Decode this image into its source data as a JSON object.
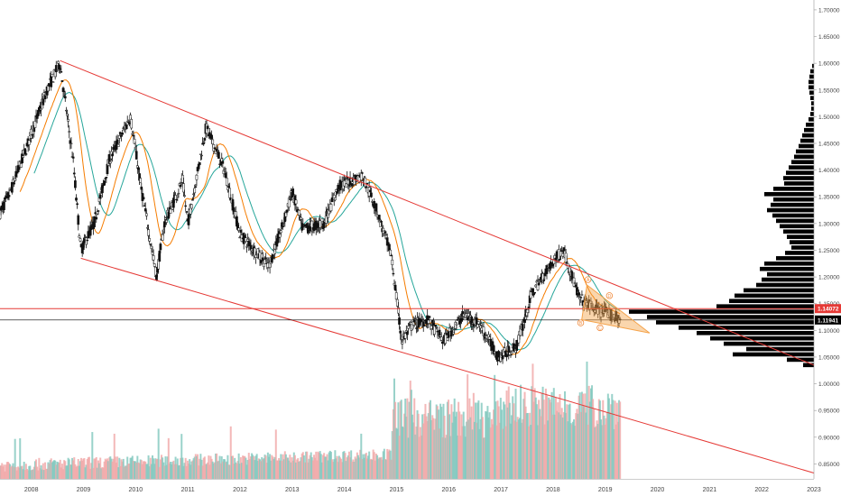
{
  "chart_data": {
    "type": "candlestick",
    "title": "",
    "xlabel": "",
    "ylabel": "",
    "x_ticks": [
      "2008",
      "2009",
      "2010",
      "2011",
      "2012",
      "2013",
      "2014",
      "2015",
      "2016",
      "2017",
      "2018",
      "2019",
      "2020",
      "2021",
      "2022",
      "2023"
    ],
    "y_ticks": [
      "1.70000",
      "1.65000",
      "1.60000",
      "1.55000",
      "1.50000",
      "1.45000",
      "1.40000",
      "1.35000",
      "1.30000",
      "1.25000",
      "1.20000",
      "1.15000",
      "1.10000",
      "1.05000",
      "1.00000",
      "0.95000",
      "0.90000",
      "0.85000"
    ],
    "xlim": [
      2007.4,
      2023.0
    ],
    "ylim": [
      0.822,
      1.71
    ],
    "price_path": [
      [
        2007.4,
        1.32
      ],
      [
        2007.6,
        1.36
      ],
      [
        2007.9,
        1.44
      ],
      [
        2008.3,
        1.55
      ],
      [
        2008.55,
        1.6
      ],
      [
        2008.8,
        1.42
      ],
      [
        2008.95,
        1.25
      ],
      [
        2009.2,
        1.3
      ],
      [
        2009.5,
        1.42
      ],
      [
        2009.9,
        1.5
      ],
      [
        2010.1,
        1.37
      ],
      [
        2010.4,
        1.2
      ],
      [
        2010.55,
        1.3
      ],
      [
        2010.9,
        1.38
      ],
      [
        2011.0,
        1.3
      ],
      [
        2011.35,
        1.48
      ],
      [
        2011.7,
        1.4
      ],
      [
        2012.0,
        1.28
      ],
      [
        2012.55,
        1.22
      ],
      [
        2012.8,
        1.29
      ],
      [
        2013.0,
        1.36
      ],
      [
        2013.2,
        1.29
      ],
      [
        2013.6,
        1.3
      ],
      [
        2013.9,
        1.37
      ],
      [
        2014.35,
        1.39
      ],
      [
        2014.6,
        1.33
      ],
      [
        2014.9,
        1.24
      ],
      [
        2015.1,
        1.08
      ],
      [
        2015.3,
        1.11
      ],
      [
        2015.6,
        1.12
      ],
      [
        2015.9,
        1.08
      ],
      [
        2016.3,
        1.13
      ],
      [
        2016.6,
        1.11
      ],
      [
        2016.95,
        1.05
      ],
      [
        2017.3,
        1.07
      ],
      [
        2017.6,
        1.17
      ],
      [
        2018.0,
        1.23
      ],
      [
        2018.2,
        1.25
      ],
      [
        2018.5,
        1.16
      ],
      [
        2018.8,
        1.14
      ],
      [
        2019.1,
        1.13
      ],
      [
        2019.3,
        1.12
      ]
    ],
    "series": [
      {
        "name": "",
        "color": "#26a69a",
        "kind": "moving-average-long"
      },
      {
        "name": "",
        "color": "#f57c00",
        "kind": "moving-average-short"
      }
    ],
    "horizontal_levels": [
      {
        "value": 1.14072,
        "label": "1.14072",
        "color": "#e53935"
      },
      {
        "value": 1.11941,
        "label": "1.11941",
        "color": "#000000"
      }
    ],
    "channel_lines": [
      {
        "name": "upper",
        "from": [
          2008.55,
          1.605
        ],
        "to": [
          2023.0,
          1.035
        ],
        "color": "#e53935"
      },
      {
        "name": "lower",
        "from": [
          2008.95,
          1.235
        ],
        "to": [
          2023.0,
          0.833
        ],
        "color": "#e53935"
      }
    ],
    "pattern_labels": [
      "A",
      "B",
      "C",
      "D"
    ],
    "pattern_color": "#f5a34a",
    "volume_profile": [
      [
        1.595,
        2
      ],
      [
        1.585,
        4
      ],
      [
        1.575,
        5
      ],
      [
        1.565,
        6
      ],
      [
        1.555,
        6
      ],
      [
        1.545,
        5
      ],
      [
        1.535,
        4
      ],
      [
        1.525,
        3
      ],
      [
        1.515,
        3
      ],
      [
        1.505,
        4
      ],
      [
        1.495,
        6
      ],
      [
        1.485,
        9
      ],
      [
        1.475,
        11
      ],
      [
        1.465,
        13
      ],
      [
        1.455,
        15
      ],
      [
        1.445,
        17
      ],
      [
        1.435,
        20
      ],
      [
        1.425,
        22
      ],
      [
        1.415,
        25
      ],
      [
        1.405,
        28
      ],
      [
        1.395,
        31
      ],
      [
        1.385,
        34
      ],
      [
        1.375,
        33
      ],
      [
        1.365,
        45
      ],
      [
        1.355,
        55
      ],
      [
        1.345,
        45
      ],
      [
        1.335,
        48
      ],
      [
        1.325,
        52
      ],
      [
        1.315,
        46
      ],
      [
        1.305,
        42
      ],
      [
        1.295,
        38
      ],
      [
        1.285,
        34
      ],
      [
        1.275,
        30
      ],
      [
        1.265,
        27
      ],
      [
        1.255,
        25
      ],
      [
        1.245,
        32
      ],
      [
        1.235,
        42
      ],
      [
        1.225,
        55
      ],
      [
        1.215,
        60
      ],
      [
        1.205,
        52
      ],
      [
        1.195,
        58
      ],
      [
        1.185,
        64
      ],
      [
        1.175,
        78
      ],
      [
        1.165,
        88
      ],
      [
        1.155,
        94
      ],
      [
        1.145,
        108
      ],
      [
        1.135,
        205
      ],
      [
        1.125,
        185
      ],
      [
        1.115,
        175
      ],
      [
        1.105,
        150
      ],
      [
        1.095,
        130
      ],
      [
        1.085,
        115
      ],
      [
        1.075,
        100
      ],
      [
        1.065,
        75
      ],
      [
        1.055,
        90
      ],
      [
        1.045,
        30
      ],
      [
        1.035,
        12
      ]
    ]
  }
}
